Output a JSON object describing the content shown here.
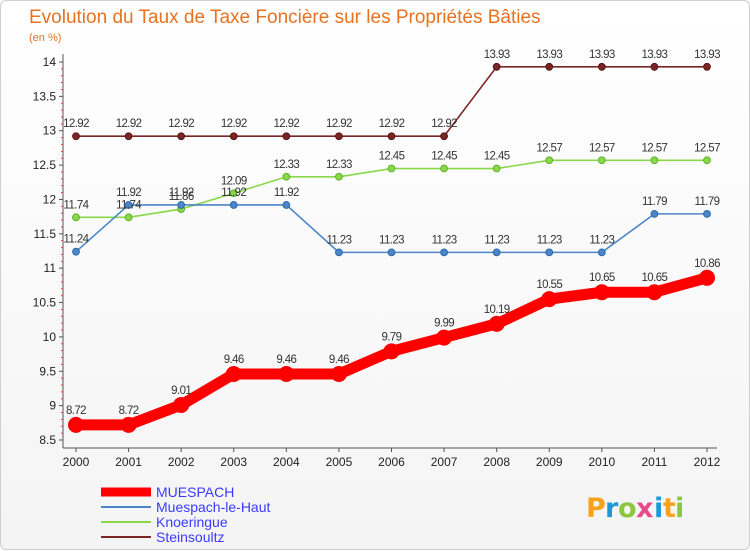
{
  "chart_data": {
    "type": "line",
    "title": "Evolution du Taux de Taxe Foncière sur les Propriétés Bâties",
    "subtitle": "(en %)",
    "xlabel": "",
    "ylabel": "",
    "x": [
      "2000",
      "2001",
      "2002",
      "2003",
      "2004",
      "2005",
      "2006",
      "2007",
      "2008",
      "2009",
      "2010",
      "2011",
      "2012"
    ],
    "ylim": [
      8.5,
      14
    ],
    "yticks": [
      "8.5",
      "9",
      "9.5",
      "10",
      "10.5",
      "11",
      "11.5",
      "12",
      "12.5",
      "13",
      "13.5",
      "14"
    ],
    "grid": false,
    "legend_position": "bottom-left",
    "series": [
      {
        "name": "MUESPACH",
        "color": "#ff0000",
        "values": [
          8.72,
          8.72,
          9.01,
          9.46,
          9.46,
          9.46,
          9.79,
          9.99,
          10.19,
          10.55,
          10.65,
          10.65,
          10.86
        ],
        "labels": [
          "8.72",
          "8.72",
          "9.01",
          "9.46",
          "9.46",
          "9.46",
          "9.79",
          "9.99",
          "10.19",
          "10.55",
          "10.65",
          "10.65",
          "10.86"
        ]
      },
      {
        "name": "Muespach-le-Haut",
        "color": "#4a86c8",
        "values": [
          11.24,
          11.92,
          11.92,
          11.92,
          11.92,
          11.23,
          11.23,
          11.23,
          11.23,
          11.23,
          11.23,
          11.79,
          11.79
        ],
        "labels": [
          "11.24",
          "11.92",
          "11.92",
          "11.92",
          "11.92",
          "11.23",
          "11.23",
          "11.23",
          "11.23",
          "11.23",
          "11.23",
          "11.79",
          "11.79"
        ]
      },
      {
        "name": "Knoeringue",
        "color": "#88d84a",
        "values": [
          11.74,
          11.74,
          11.86,
          12.09,
          12.33,
          12.33,
          12.45,
          12.45,
          12.45,
          12.57,
          12.57,
          12.57,
          12.57
        ],
        "labels": [
          "11.74",
          "11.74",
          "11.86",
          "12.09",
          "12.33",
          "12.33",
          "12.45",
          "12.45",
          "12.45",
          "12.57",
          "12.57",
          "12.57",
          "12.57"
        ]
      },
      {
        "name": "Steinsoultz",
        "color": "#7a2525",
        "values": [
          12.92,
          12.92,
          12.92,
          12.92,
          12.92,
          12.92,
          12.92,
          12.92,
          13.93,
          13.93,
          13.93,
          13.93,
          13.93
        ],
        "labels": [
          "12.92",
          "12.92",
          "12.92",
          "12.92",
          "12.92",
          "12.92",
          "12.92",
          "12.92",
          "13.93",
          "13.93",
          "13.93",
          "13.93",
          "13.93"
        ]
      }
    ]
  },
  "brand": {
    "letters": [
      "P",
      "r",
      "o",
      "x",
      "i",
      "t",
      "i"
    ],
    "colors": [
      "#f7a21b",
      "#1c9ad6",
      "#8dc63f",
      "#e94a8b",
      "#1c9ad6",
      "#f7a21b",
      "#8dc63f"
    ]
  }
}
